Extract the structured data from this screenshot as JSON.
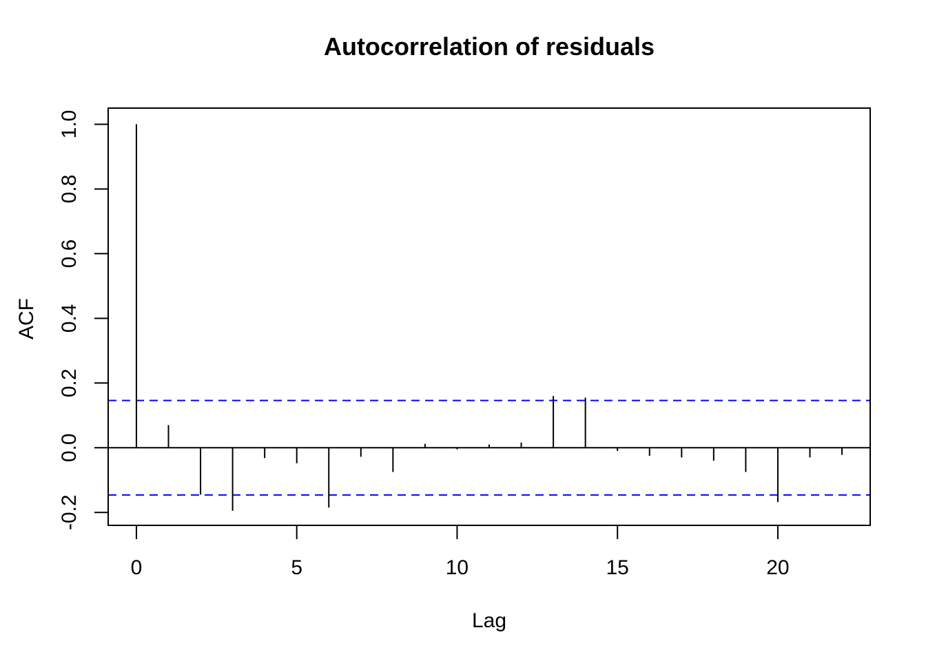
{
  "chart_data": {
    "type": "bar",
    "title": "Autocorrelation of residuals",
    "xlabel": "Lag",
    "ylabel": "ACF",
    "xlim": [
      -0.88,
      22.88
    ],
    "ylim": [
      -0.24,
      1.05
    ],
    "x_ticks": [
      0,
      5,
      10,
      15,
      20
    ],
    "x_tick_labels": [
      "0",
      "5",
      "10",
      "15",
      "20"
    ],
    "y_ticks": [
      -0.2,
      0.0,
      0.2,
      0.4,
      0.6,
      0.8,
      1.0
    ],
    "y_tick_labels": [
      "-0.2",
      "0.0",
      "0.2",
      "0.4",
      "0.6",
      "0.8",
      "1.0"
    ],
    "lags": [
      0,
      1,
      2,
      3,
      4,
      5,
      6,
      7,
      8,
      9,
      10,
      11,
      12,
      13,
      14,
      15,
      16,
      17,
      18,
      19,
      20,
      21,
      22
    ],
    "acf": [
      1.0,
      0.07,
      -0.145,
      -0.195,
      -0.032,
      -0.048,
      -0.185,
      -0.028,
      -0.075,
      0.012,
      -0.005,
      0.01,
      0.016,
      0.16,
      0.155,
      -0.01,
      -0.025,
      -0.03,
      -0.04,
      -0.075,
      -0.168,
      -0.03,
      -0.022
    ],
    "confidence_bound": 0.146,
    "colors": {
      "spikes": "#000000",
      "confidence_lines": "#0000ff",
      "zero_line": "#000000",
      "frame": "#000000"
    }
  }
}
